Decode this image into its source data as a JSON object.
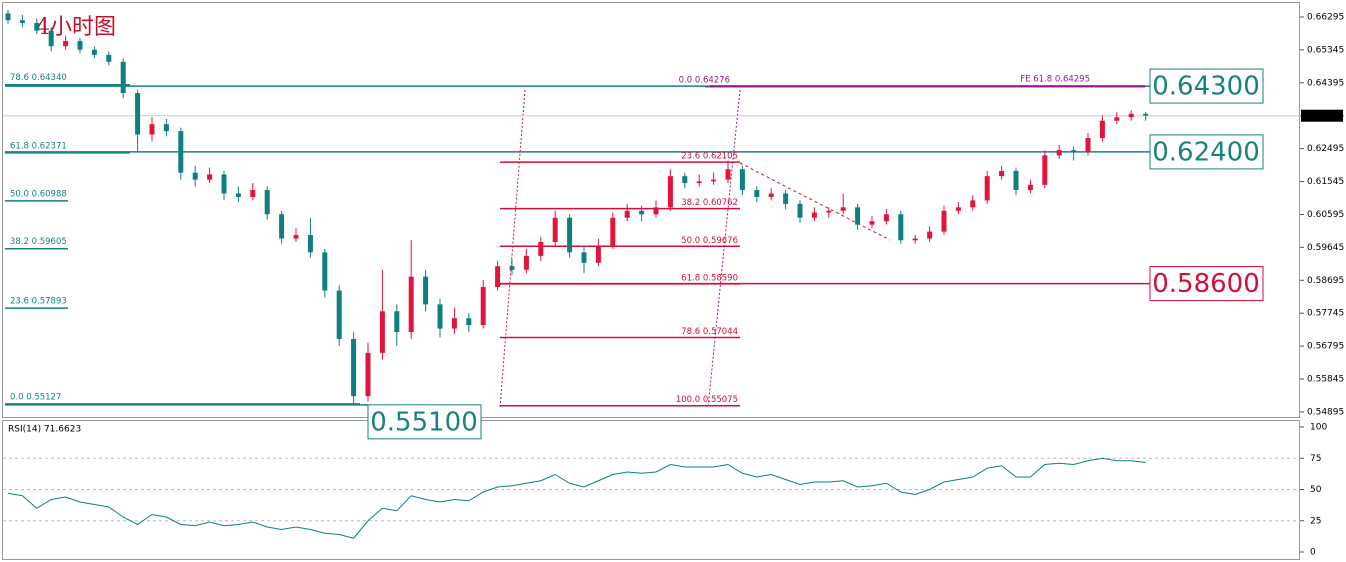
{
  "chart_data": [
    {
      "type": "candlestick",
      "title": "4小时图",
      "up_color": "#e0143c",
      "down_color": "#0f7f7f",
      "ylim": [
        0.5472,
        0.6664
      ],
      "yticks": [
        0.66295,
        0.65345,
        0.64395,
        0.63445,
        0.62495,
        0.61545,
        0.60595,
        0.59645,
        0.58695,
        0.57745,
        0.56795,
        0.55845,
        0.54895
      ],
      "ohlc": [
        [
          0.664,
          0.665,
          0.661,
          0.662
        ],
        [
          0.662,
          0.6635,
          0.66,
          0.6612
        ],
        [
          0.6612,
          0.6625,
          0.658,
          0.659
        ],
        [
          0.659,
          0.66,
          0.653,
          0.6545
        ],
        [
          0.6545,
          0.6575,
          0.6535,
          0.656
        ],
        [
          0.656,
          0.657,
          0.6525,
          0.6535
        ],
        [
          0.6535,
          0.6545,
          0.651,
          0.652
        ],
        [
          0.652,
          0.653,
          0.649,
          0.65
        ],
        [
          0.65,
          0.651,
          0.6395,
          0.641
        ],
        [
          0.641,
          0.642,
          0.624,
          0.629
        ],
        [
          0.629,
          0.634,
          0.627,
          0.632
        ],
        [
          0.632,
          0.6335,
          0.6285,
          0.63
        ],
        [
          0.63,
          0.631,
          0.616,
          0.618
        ],
        [
          0.618,
          0.62,
          0.614,
          0.616
        ],
        [
          0.616,
          0.6195,
          0.615,
          0.6175
        ],
        [
          0.6175,
          0.6185,
          0.61,
          0.612
        ],
        [
          0.612,
          0.614,
          0.6095,
          0.611
        ],
        [
          0.611,
          0.615,
          0.61,
          0.613
        ],
        [
          0.613,
          0.614,
          0.6045,
          0.606
        ],
        [
          0.606,
          0.607,
          0.5975,
          0.599
        ],
        [
          0.599,
          0.602,
          0.598,
          0.6
        ],
        [
          0.6,
          0.605,
          0.5935,
          0.595
        ],
        [
          0.595,
          0.596,
          0.582,
          0.584
        ],
        [
          0.584,
          0.5855,
          0.568,
          0.57
        ],
        [
          0.57,
          0.572,
          0.551,
          0.5535
        ],
        [
          0.5535,
          0.569,
          0.552,
          0.566
        ],
        [
          0.566,
          0.59,
          0.564,
          0.578
        ],
        [
          0.578,
          0.58,
          0.568,
          0.572
        ],
        [
          0.572,
          0.5985,
          0.57,
          0.588
        ],
        [
          0.588,
          0.59,
          0.578,
          0.58
        ],
        [
          0.58,
          0.5815,
          0.5705,
          0.573
        ],
        [
          0.573,
          0.579,
          0.5715,
          0.576
        ],
        [
          0.576,
          0.5775,
          0.572,
          0.574
        ],
        [
          0.574,
          0.587,
          0.573,
          0.585
        ],
        [
          0.585,
          0.5925,
          0.584,
          0.591
        ],
        [
          0.591,
          0.593,
          0.5885,
          0.59
        ],
        [
          0.59,
          0.596,
          0.589,
          0.594
        ],
        [
          0.594,
          0.5995,
          0.5925,
          0.598
        ],
        [
          0.598,
          0.607,
          0.597,
          0.605
        ],
        [
          0.605,
          0.606,
          0.5935,
          0.595
        ],
        [
          0.595,
          0.5965,
          0.589,
          0.592
        ],
        [
          0.592,
          0.599,
          0.591,
          0.597
        ],
        [
          0.597,
          0.6065,
          0.596,
          0.605
        ],
        [
          0.605,
          0.609,
          0.604,
          0.607
        ],
        [
          0.607,
          0.6085,
          0.604,
          0.606
        ],
        [
          0.606,
          0.61,
          0.605,
          0.608
        ],
        [
          0.608,
          0.619,
          0.607,
          0.617
        ],
        [
          0.617,
          0.618,
          0.6135,
          0.615
        ],
        [
          0.615,
          0.6175,
          0.614,
          0.6155
        ],
        [
          0.6155,
          0.618,
          0.6145,
          0.616
        ],
        [
          0.616,
          0.6215,
          0.615,
          0.619
        ],
        [
          0.619,
          0.62,
          0.6115,
          0.613
        ],
        [
          0.613,
          0.614,
          0.6095,
          0.611
        ],
        [
          0.611,
          0.6135,
          0.61,
          0.612
        ],
        [
          0.612,
          0.613,
          0.6075,
          0.609
        ],
        [
          0.609,
          0.61,
          0.6035,
          0.605
        ],
        [
          0.605,
          0.608,
          0.604,
          0.6065
        ],
        [
          0.6065,
          0.608,
          0.605,
          0.607
        ],
        [
          0.607,
          0.612,
          0.606,
          0.608
        ],
        [
          0.608,
          0.609,
          0.6015,
          0.603
        ],
        [
          0.603,
          0.6055,
          0.602,
          0.604
        ],
        [
          0.604,
          0.6075,
          0.603,
          0.606
        ],
        [
          0.606,
          0.607,
          0.5975,
          0.5985
        ],
        [
          0.5985,
          0.6,
          0.5975,
          0.599
        ],
        [
          0.599,
          0.6025,
          0.598,
          0.601
        ],
        [
          0.601,
          0.6085,
          0.6,
          0.607
        ],
        [
          0.607,
          0.6095,
          0.606,
          0.608
        ],
        [
          0.608,
          0.6115,
          0.607,
          0.61
        ],
        [
          0.61,
          0.6185,
          0.609,
          0.617
        ],
        [
          0.617,
          0.62,
          0.616,
          0.6185
        ],
        [
          0.6185,
          0.6195,
          0.6115,
          0.613
        ],
        [
          0.613,
          0.616,
          0.612,
          0.6145
        ],
        [
          0.6145,
          0.6245,
          0.6135,
          0.623
        ],
        [
          0.623,
          0.626,
          0.622,
          0.6245
        ],
        [
          0.6245,
          0.6255,
          0.6215,
          0.624
        ],
        [
          0.624,
          0.6295,
          0.623,
          0.628
        ],
        [
          0.628,
          0.6345,
          0.627,
          0.633
        ],
        [
          0.633,
          0.6355,
          0.632,
          0.634
        ],
        [
          0.634,
          0.636,
          0.633,
          0.635
        ],
        [
          0.635,
          0.6355,
          0.633,
          0.6345
        ]
      ],
      "levels": [
        {
          "value": 0.643,
          "label": "0.64300",
          "color": "#1a8080"
        },
        {
          "value": 0.624,
          "label": "0.62400",
          "color": "#1a8080"
        },
        {
          "value": 0.586,
          "label": "0.58600",
          "color": "#d0103a"
        },
        {
          "value": 0.551,
          "label": "0.55100",
          "color": "#1a8080"
        }
      ],
      "fib_left_color": "#1a8080",
      "fib_left": [
        {
          "value": 0.6434,
          "label": "78.6  0.64340"
        },
        {
          "value": 0.62371,
          "label": "61.8  0.62371"
        },
        {
          "value": 0.60988,
          "label": "50.0  0.60988"
        },
        {
          "value": 0.59605,
          "label": "38.2  0.59605"
        },
        {
          "value": 0.57893,
          "label": "23.6  0.57893"
        },
        {
          "value": 0.55127,
          "label": "0.0  0.55127"
        }
      ],
      "fib_mid_color": "#d0103a",
      "fib_mid": [
        {
          "value": 0.62105,
          "label": "23.6  0.62105"
        },
        {
          "value": 0.60762,
          "label": "38.2  0.60762"
        },
        {
          "value": 0.59676,
          "label": "50.0  0.59676"
        },
        {
          "value": 0.5859,
          "label": "61.8  0.58590"
        },
        {
          "value": 0.57044,
          "label": "78.6  0.57044"
        },
        {
          "value": 0.55075,
          "label": "100.0  0.55075"
        }
      ],
      "expansion_color": "#8e1a8e",
      "expansion": [
        {
          "value": 0.64276,
          "label": "0.0  0.64276"
        },
        {
          "value": 0.64295,
          "label": "FE 61.8  0.64295"
        }
      ]
    },
    {
      "type": "line",
      "title": "RSI(14) 71.6623",
      "color": "#0f7f7f",
      "ylim": [
        0,
        100
      ],
      "yticks": [
        0,
        25,
        50,
        75,
        100
      ],
      "values": [
        47,
        45,
        35,
        42,
        44,
        40,
        38,
        36,
        28,
        22,
        30,
        28,
        22,
        21,
        24,
        21,
        22,
        24,
        20,
        18,
        20,
        18,
        15,
        14,
        11,
        25,
        35,
        33,
        45,
        42,
        40,
        42,
        41,
        48,
        52,
        53,
        55,
        57,
        62,
        55,
        52,
        57,
        62,
        64,
        63,
        64,
        70,
        68,
        68,
        68,
        70,
        63,
        60,
        62,
        58,
        54,
        56,
        56,
        57,
        52,
        53,
        55,
        48,
        46,
        50,
        56,
        58,
        60,
        67,
        69,
        60,
        60,
        70,
        71,
        70,
        73,
        75,
        73,
        73,
        71.6623
      ]
    }
  ]
}
